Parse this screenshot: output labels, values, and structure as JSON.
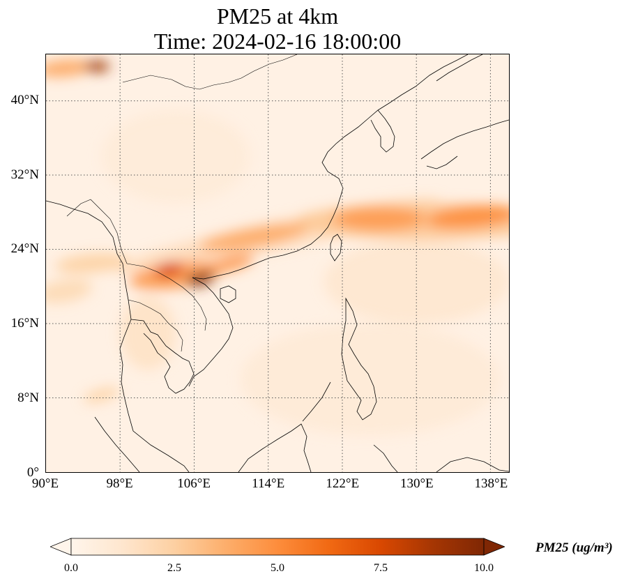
{
  "title": {
    "line1": "PM25 at 4km",
    "line2": "Time: 2024-02-16 18:00:00"
  },
  "map": {
    "extent": {
      "lon_min": 90,
      "lon_max": 140,
      "lat_min": 0,
      "lat_max": 45
    },
    "gridlines": "dotted",
    "lat_ticks": [
      {
        "value": 0,
        "label": "0°"
      },
      {
        "value": 8,
        "label": "8°N"
      },
      {
        "value": 16,
        "label": "16°N"
      },
      {
        "value": 24,
        "label": "24°N"
      },
      {
        "value": 32,
        "label": "32°N"
      },
      {
        "value": 40,
        "label": "40°N"
      }
    ],
    "lon_ticks": [
      {
        "value": 90,
        "label": "90°E"
      },
      {
        "value": 98,
        "label": "98°E"
      },
      {
        "value": 106,
        "label": "106°E"
      },
      {
        "value": 114,
        "label": "114°E"
      },
      {
        "value": 122,
        "label": "122°E"
      },
      {
        "value": 130,
        "label": "130°E"
      },
      {
        "value": 138,
        "label": "138°E"
      }
    ],
    "background_value": 0.3,
    "plumes": [
      {
        "lon": 92,
        "lat": 43.5,
        "rx": 3.0,
        "ry": 0.9,
        "value": 4.0,
        "rot": -5
      },
      {
        "lon": 95.5,
        "lat": 43.7,
        "rx": 1.4,
        "ry": 0.6,
        "value": 9.0,
        "rot": 0
      },
      {
        "lon": 115,
        "lat": 25.5,
        "rx": 18.0,
        "ry": 1.6,
        "value": 1.8,
        "rot": -12
      },
      {
        "lon": 112.5,
        "lat": 25.3,
        "rx": 6.0,
        "ry": 1.0,
        "value": 4.0,
        "rot": -10
      },
      {
        "lon": 104,
        "lat": 21.2,
        "rx": 5.0,
        "ry": 1.4,
        "value": 4.5,
        "rot": -8
      },
      {
        "lon": 103.3,
        "lat": 21.8,
        "rx": 1.6,
        "ry": 0.8,
        "value": 7.5,
        "rot": -10
      },
      {
        "lon": 106.7,
        "lat": 20.8,
        "rx": 1.6,
        "ry": 0.7,
        "value": 10.0,
        "rot": -15
      },
      {
        "lon": 110,
        "lat": 22.5,
        "rx": 2.5,
        "ry": 0.8,
        "value": 4.5,
        "rot": -15
      },
      {
        "lon": 95,
        "lat": 22.5,
        "rx": 4.0,
        "ry": 1.0,
        "value": 2.5,
        "rot": -5
      },
      {
        "lon": 92,
        "lat": 19.5,
        "rx": 3.0,
        "ry": 1.2,
        "value": 2.0,
        "rot": -10
      },
      {
        "lon": 131,
        "lat": 27.0,
        "rx": 14.0,
        "ry": 2.0,
        "value": 2.8,
        "rot": 0
      },
      {
        "lon": 126,
        "lat": 27.3,
        "rx": 5.0,
        "ry": 1.3,
        "value": 4.5,
        "rot": 0
      },
      {
        "lon": 136,
        "lat": 27.5,
        "rx": 5.0,
        "ry": 1.2,
        "value": 5.0,
        "rot": -5
      },
      {
        "lon": 130,
        "lat": 20.5,
        "rx": 10.0,
        "ry": 4.5,
        "value": 1.2,
        "rot": 0
      },
      {
        "lon": 125,
        "lat": 10.0,
        "rx": 14.0,
        "ry": 6.0,
        "value": 0.9,
        "rot": 0
      },
      {
        "lon": 96,
        "lat": 8.3,
        "rx": 2.0,
        "ry": 0.6,
        "value": 2.5,
        "rot": -15
      },
      {
        "lon": 101,
        "lat": 15.0,
        "rx": 3.0,
        "ry": 4.0,
        "value": 1.5,
        "rot": 0
      },
      {
        "lon": 104,
        "lat": 34.0,
        "rx": 8.0,
        "ry": 5.0,
        "value": 0.8,
        "rot": 0
      }
    ]
  },
  "colorbar": {
    "colors": [
      "#fff5eb",
      "#fee6ce",
      "#fdd0a2",
      "#fdae6b",
      "#fd8d3c",
      "#f16913",
      "#d94801",
      "#a63603",
      "#7f2704"
    ],
    "min": 0,
    "max": 10,
    "extend": "both",
    "ticks": [
      {
        "value": 0,
        "label": "0.0"
      },
      {
        "value": 2.5,
        "label": "2.5"
      },
      {
        "value": 5,
        "label": "5.0"
      },
      {
        "value": 7.5,
        "label": "7.5"
      },
      {
        "value": 10,
        "label": "10.0"
      }
    ],
    "label": "PM25 (ug/m³)"
  }
}
